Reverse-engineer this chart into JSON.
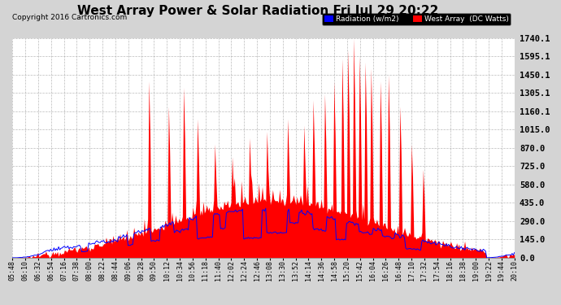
{
  "title": "West Array Power & Solar Radiation Fri Jul 29 20:22",
  "copyright": "Copyright 2016 Cartronics.com",
  "bg_color": "#d4d4d4",
  "plot_bg_color": "#ffffff",
  "grid_color": "#aaaaaa",
  "y_ticks": [
    0.0,
    145.0,
    290.0,
    435.0,
    580.0,
    725.0,
    870.0,
    1015.0,
    1160.1,
    1305.1,
    1450.1,
    1595.1,
    1740.1
  ],
  "ylim": [
    0,
    1740.1
  ],
  "x_labels": [
    "05:48",
    "06:10",
    "06:32",
    "06:54",
    "07:16",
    "07:38",
    "08:00",
    "08:22",
    "08:44",
    "09:06",
    "09:28",
    "09:50",
    "10:12",
    "10:34",
    "10:56",
    "11:18",
    "11:40",
    "12:02",
    "12:24",
    "12:46",
    "13:08",
    "13:30",
    "13:52",
    "14:14",
    "14:36",
    "14:58",
    "15:20",
    "15:42",
    "16:04",
    "16:26",
    "16:48",
    "17:10",
    "17:32",
    "17:54",
    "18:16",
    "18:38",
    "19:00",
    "19:22",
    "19:44",
    "20:10"
  ],
  "legend_radiation_label": "Radiation (w/m2)",
  "legend_west_label": "West Array  (DC Watts)",
  "legend_radiation_color": "#0000ff",
  "legend_west_color": "#ff0000",
  "title_fontsize": 11,
  "copyright_fontsize": 6.5,
  "tick_fontsize": 6,
  "ytick_fontsize": 7.5
}
